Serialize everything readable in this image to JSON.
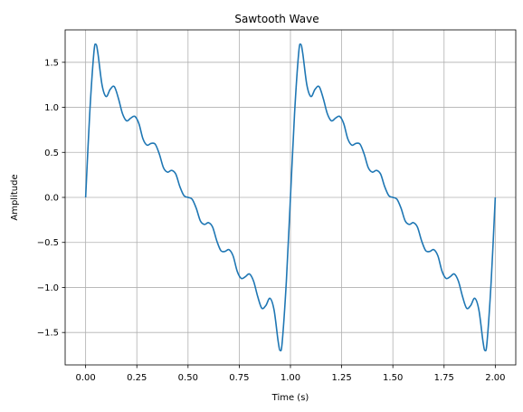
{
  "chart_data": {
    "type": "line",
    "title": "Sawtooth Wave",
    "xlabel": "Time (s)",
    "ylabel": "Amplitude",
    "xlim": [
      -0.1,
      2.1
    ],
    "ylim": [
      -1.86,
      1.86
    ],
    "xticks": [
      0.0,
      0.25,
      0.5,
      0.75,
      1.0,
      1.25,
      1.5,
      1.75,
      2.0
    ],
    "xtick_labels": [
      "0.00",
      "0.25",
      "0.50",
      "0.75",
      "1.00",
      "1.25",
      "1.50",
      "1.75",
      "2.00"
    ],
    "yticks": [
      -1.5,
      -1.0,
      -0.5,
      0.0,
      0.5,
      1.0,
      1.5
    ],
    "ytick_labels": [
      "−1.5",
      "−1.0",
      "−0.5",
      "0.0",
      "0.5",
      "1.0",
      "1.5"
    ],
    "grid": true,
    "series": [
      {
        "color": "#1f77b4",
        "x": [
          0.0,
          0.02,
          0.04,
          0.05,
          0.06,
          0.08,
          0.1,
          0.12,
          0.14,
          0.16,
          0.18,
          0.2,
          0.22,
          0.24,
          0.26,
          0.28,
          0.3,
          0.32,
          0.34,
          0.36,
          0.38,
          0.4,
          0.42,
          0.44,
          0.46,
          0.48,
          0.5,
          0.52,
          0.54,
          0.56,
          0.58,
          0.6,
          0.62,
          0.64,
          0.66,
          0.68,
          0.7,
          0.72,
          0.74,
          0.76,
          0.78,
          0.8,
          0.82,
          0.84,
          0.86,
          0.88,
          0.9,
          0.92,
          0.94,
          0.95,
          0.96,
          0.98,
          1.0,
          1.02,
          1.04,
          1.05,
          1.06,
          1.08,
          1.1,
          1.12,
          1.14,
          1.16,
          1.18,
          1.2,
          1.22,
          1.24,
          1.26,
          1.28,
          1.3,
          1.32,
          1.34,
          1.36,
          1.38,
          1.4,
          1.42,
          1.44,
          1.46,
          1.48,
          1.5,
          1.52,
          1.54,
          1.56,
          1.58,
          1.6,
          1.62,
          1.64,
          1.66,
          1.68,
          1.7,
          1.72,
          1.74,
          1.76,
          1.78,
          1.8,
          1.82,
          1.84,
          1.86,
          1.88,
          1.9,
          1.92,
          1.94,
          1.95,
          1.96,
          1.98,
          2.0
        ],
        "y": [
          0.0,
          0.93,
          1.6,
          1.7,
          1.6,
          1.25,
          1.12,
          1.2,
          1.23,
          1.1,
          0.93,
          0.85,
          0.88,
          0.9,
          0.82,
          0.65,
          0.58,
          0.6,
          0.59,
          0.48,
          0.33,
          0.28,
          0.3,
          0.26,
          0.12,
          0.02,
          0.0,
          -0.02,
          -0.12,
          -0.26,
          -0.3,
          -0.28,
          -0.33,
          -0.48,
          -0.59,
          -0.6,
          -0.58,
          -0.65,
          -0.82,
          -0.9,
          -0.88,
          -0.85,
          -0.93,
          -1.1,
          -1.23,
          -1.2,
          -1.12,
          -1.25,
          -1.6,
          -1.7,
          -1.6,
          -0.93,
          0.0,
          0.93,
          1.6,
          1.7,
          1.6,
          1.25,
          1.12,
          1.2,
          1.23,
          1.1,
          0.93,
          0.85,
          0.88,
          0.9,
          0.82,
          0.65,
          0.58,
          0.6,
          0.59,
          0.48,
          0.33,
          0.28,
          0.3,
          0.26,
          0.12,
          0.02,
          0.0,
          -0.02,
          -0.12,
          -0.26,
          -0.3,
          -0.28,
          -0.33,
          -0.48,
          -0.59,
          -0.6,
          -0.58,
          -0.65,
          -0.82,
          -0.9,
          -0.88,
          -0.85,
          -0.93,
          -1.1,
          -1.23,
          -1.2,
          -1.12,
          -1.25,
          -1.6,
          -1.7,
          -1.6,
          -0.93,
          0.0
        ]
      }
    ]
  }
}
